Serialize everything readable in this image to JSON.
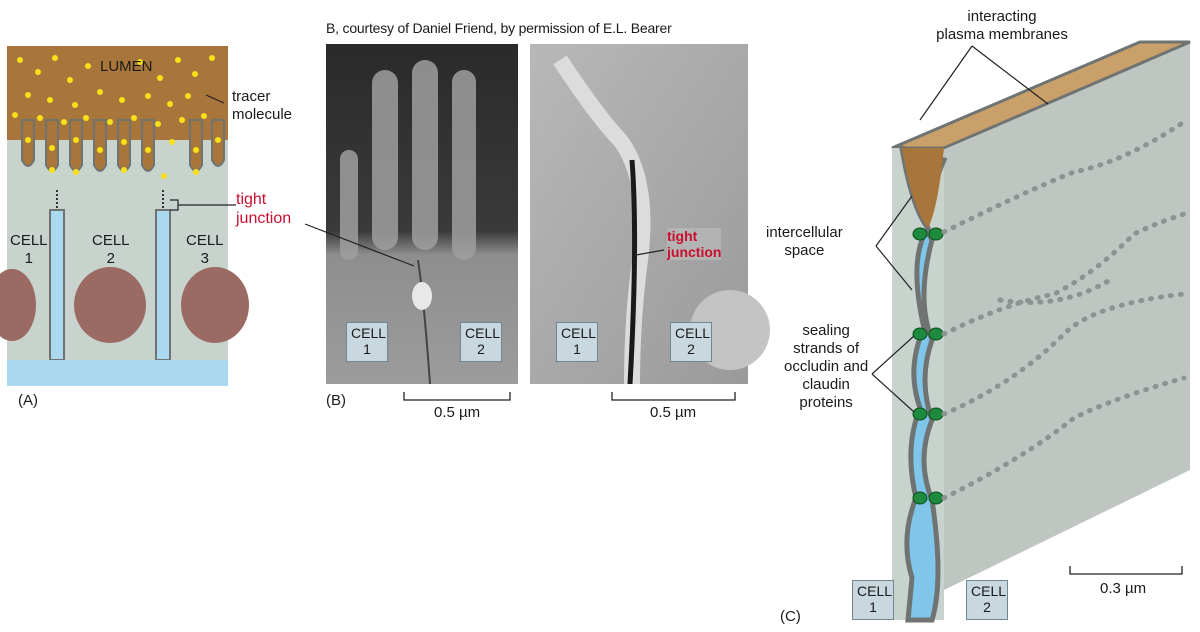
{
  "credit": "B, courtesy of Daniel Friend, by permission of E.L. Bearer",
  "panel_a": {
    "panel_label": "(A)",
    "lumen": "LUMEN",
    "tracer": "tracer\nmolecule",
    "tight_junction": "tight\njunction",
    "cells": [
      "CELL\n1",
      "CELL\n2",
      "CELL\n3"
    ]
  },
  "panel_b": {
    "panel_label": "(B)",
    "left_cells": [
      "CELL\n1",
      "CELL\n2"
    ],
    "right_cells": [
      "CELL\n1",
      "CELL\n2"
    ],
    "tight_junction": "tight\njunction",
    "scale_left": "0.5 µm",
    "scale_right": "0.5 µm"
  },
  "panel_c": {
    "panel_label": "(C)",
    "membranes": "interacting\nplasma membranes",
    "space": "intercellular\nspace",
    "strands": "sealing\nstrands of\noccludin and\nclaudin\nproteins",
    "cells": [
      "CELL\n1",
      "CELL\n2"
    ],
    "scale": "0.3 µm"
  },
  "colors": {
    "lumen": "#a8763a",
    "tracer": "#f7e11a",
    "cell": "#c9d3ce",
    "nucleus": "#9a6a63",
    "extracellular": "#a9d8ef",
    "membrane": "#6f7473",
    "junction_protein": "#1e8a3e",
    "label_red": "#c8102e"
  }
}
